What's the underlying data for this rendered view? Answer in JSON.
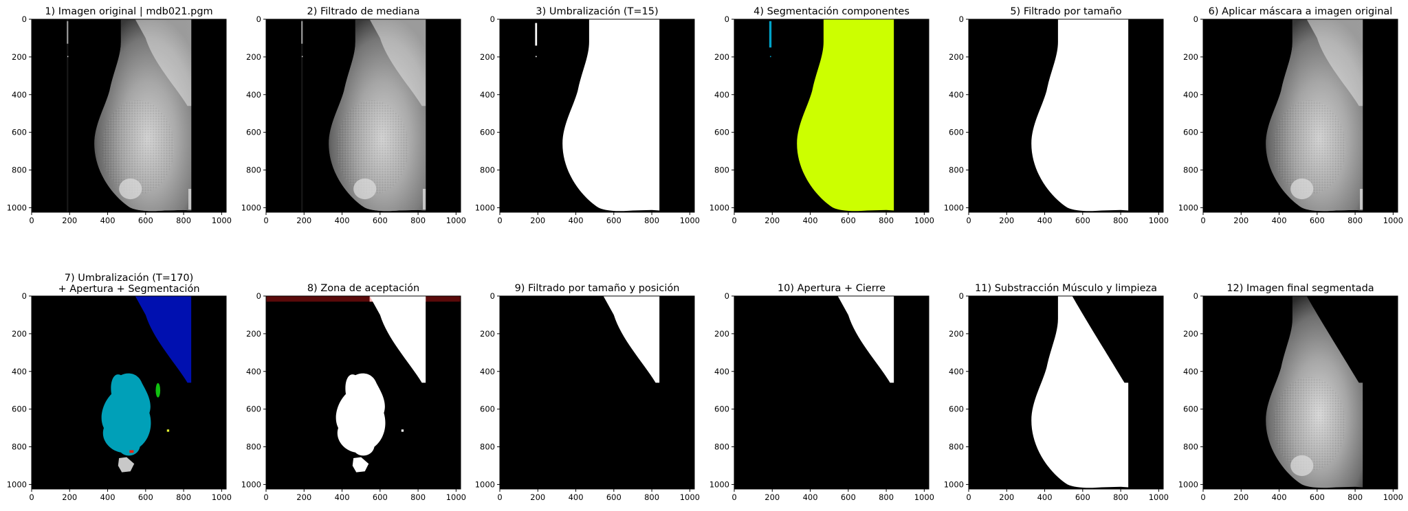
{
  "panels": [
    {
      "id": "p1",
      "title": "1) Imagen original | mdb021.pgm"
    },
    {
      "id": "p2",
      "title": "2) Filtrado de mediana"
    },
    {
      "id": "p3",
      "title": "3) Umbralización (T=15)"
    },
    {
      "id": "p4",
      "title": "4) Segmentación componentes"
    },
    {
      "id": "p5",
      "title": "5) Filtrado por tamaño"
    },
    {
      "id": "p6",
      "title": "6) Aplicar máscara a imagen original"
    },
    {
      "id": "p7",
      "title": "7) Umbralización (T=170)",
      "title2": "+ Apertura + Segmentación"
    },
    {
      "id": "p8",
      "title": "8) Zona de aceptación"
    },
    {
      "id": "p9",
      "title": "9) Filtrado por tamaño y posición"
    },
    {
      "id": "p10",
      "title": "10) Apertura + Cierre"
    },
    {
      "id": "p11",
      "title": "11) Substracción Músculo y limpieza"
    },
    {
      "id": "p12",
      "title": "12) Imagen final segmentada"
    }
  ],
  "axis": {
    "xticks": [
      "0",
      "200",
      "400",
      "600",
      "800",
      "1000"
    ],
    "yticks": [
      "0",
      "200",
      "400",
      "600",
      "800",
      "1000"
    ]
  },
  "colors": {
    "background": "#000000",
    "mask": "#ffffff",
    "breast_component": "#ccff00",
    "artifact_component": "#00a2c8",
    "muscle_component": "#0010b0",
    "tissue_component": "#00a0b8",
    "small_green": "#10c010",
    "small_yellow": "#e8ff30",
    "small_red": "#e82010",
    "small_gray": "#c8c8c8",
    "accept_zone": "#5a0a0a",
    "accept_zone_light": "#ffb0b0"
  }
}
